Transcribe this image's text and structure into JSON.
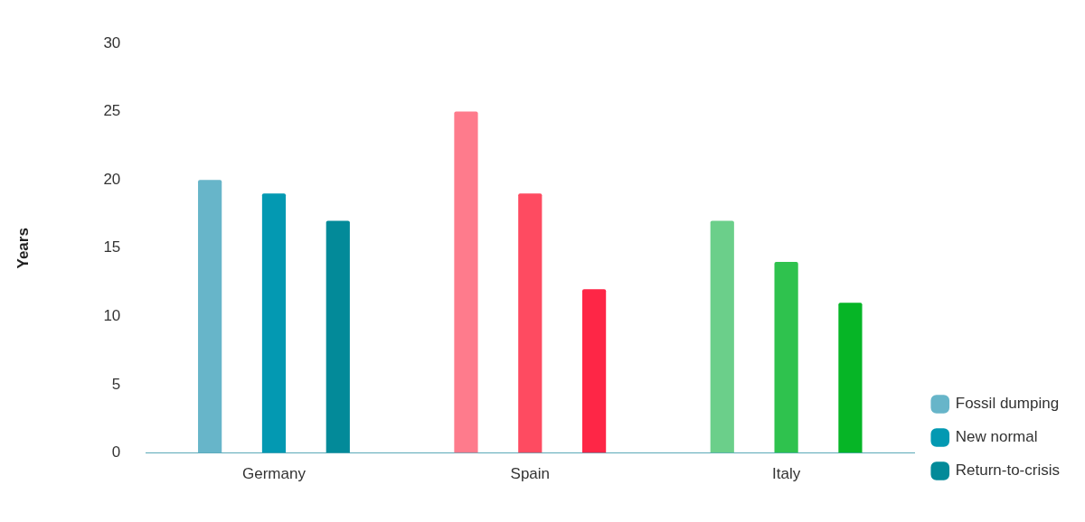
{
  "chart_data": {
    "type": "bar",
    "ylabel": "Years",
    "categories": [
      "Germany",
      "Spain",
      "Italy"
    ],
    "series": [
      {
        "name": "Fossil dumping",
        "color": "#67b5c9",
        "colors": [
          "#67b5c9",
          "#fe7b8c",
          "#6bcf8a"
        ],
        "values": [
          20,
          25,
          17
        ]
      },
      {
        "name": "New normal",
        "color": "#0399b2",
        "colors": [
          "#0399b2",
          "#fe4b61",
          "#2fc24e"
        ],
        "values": [
          19,
          19,
          14
        ]
      },
      {
        "name": "Return-to-crisis",
        "color": "#038a99",
        "colors": [
          "#038a99",
          "#fe2646",
          "#06b526"
        ],
        "values": [
          17,
          12,
          11
        ]
      }
    ],
    "ylim": [
      0,
      30
    ],
    "yticks": [
      0,
      5,
      10,
      15,
      20,
      25,
      30
    ],
    "grid": false,
    "legend": "right"
  }
}
